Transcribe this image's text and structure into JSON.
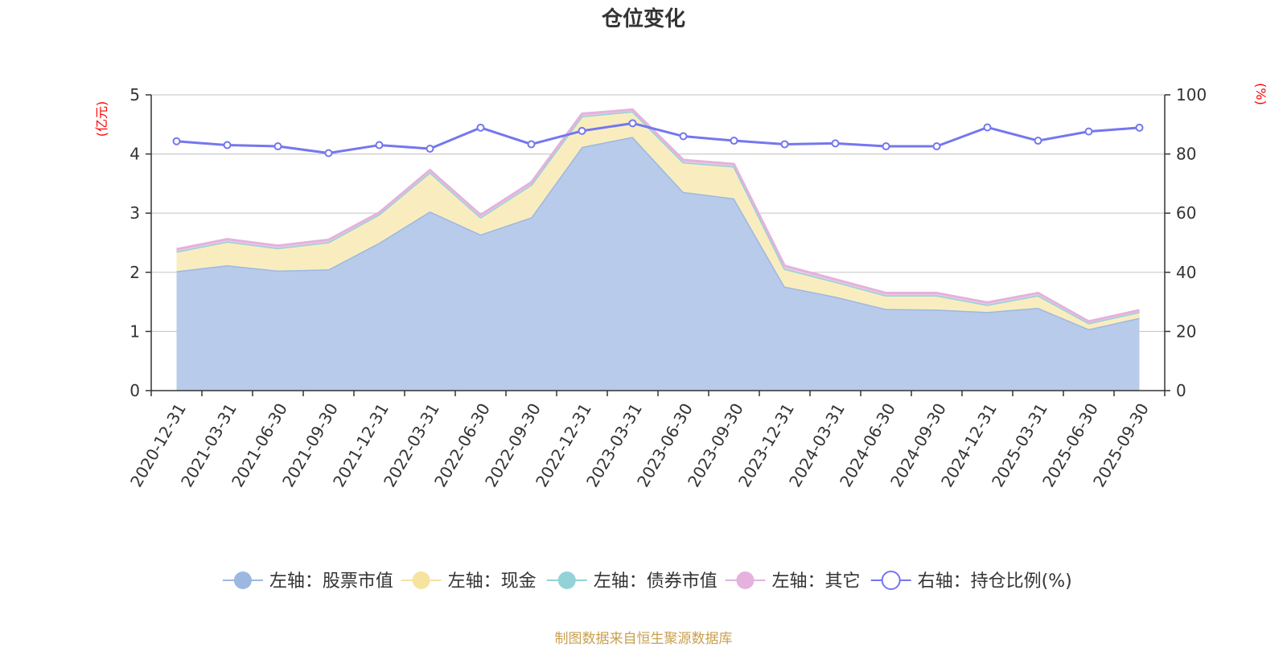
{
  "chart_data": {
    "type": "area",
    "title": "仓位变化",
    "left_axis_unit": "(亿元)",
    "right_axis_unit": "(%)",
    "left_ylim": [
      0,
      5
    ],
    "left_ticks": [
      0,
      1,
      2,
      3,
      4,
      5
    ],
    "right_ylim": [
      0,
      100
    ],
    "right_ticks": [
      0,
      20,
      40,
      60,
      80,
      100
    ],
    "categories": [
      "2020-12-31",
      "2021-03-31",
      "2021-06-30",
      "2021-09-30",
      "2021-12-31",
      "2022-03-31",
      "2022-06-30",
      "2022-09-30",
      "2022-12-31",
      "2023-03-31",
      "2023-06-30",
      "2023-09-30",
      "2023-12-31",
      "2024-03-31",
      "2024-06-30",
      "2024-09-30",
      "2024-12-31",
      "2025-03-31",
      "2025-06-30",
      "2025-09-30"
    ],
    "series": [
      {
        "name": "左轴：股票市值",
        "axis": "left",
        "kind": "stacked-area",
        "color": "#9db8e0",
        "fill": "#b8cbea",
        "values": [
          2.02,
          2.12,
          2.03,
          2.05,
          2.5,
          3.03,
          2.64,
          2.93,
          4.12,
          4.29,
          3.36,
          3.25,
          1.76,
          1.59,
          1.38,
          1.37,
          1.33,
          1.4,
          1.04,
          1.23
        ]
      },
      {
        "name": "左轴：现金",
        "axis": "left",
        "kind": "stacked-area",
        "color": "#f6e3a0",
        "fill": "#f9edc0",
        "values": [
          0.33,
          0.4,
          0.38,
          0.46,
          0.48,
          0.66,
          0.29,
          0.55,
          0.52,
          0.43,
          0.5,
          0.54,
          0.3,
          0.25,
          0.23,
          0.24,
          0.12,
          0.21,
          0.1,
          0.1
        ]
      },
      {
        "name": "左轴：债券市值",
        "axis": "left",
        "kind": "stacked-area",
        "color": "#93d3d8",
        "fill": "#b2e0e3",
        "values": [
          0,
          0,
          0,
          0,
          0,
          0,
          0,
          0,
          0,
          0,
          0,
          0,
          0,
          0,
          0,
          0,
          0,
          0,
          0,
          0
        ]
      },
      {
        "name": "左轴：其它",
        "axis": "left",
        "kind": "stacked-area",
        "color": "#e4b2dc",
        "fill": "#edc8e6",
        "values": [
          0.04,
          0.04,
          0.04,
          0.04,
          0.03,
          0.04,
          0.04,
          0.04,
          0.04,
          0.03,
          0.04,
          0.04,
          0.05,
          0.04,
          0.04,
          0.04,
          0.04,
          0.04,
          0.03,
          0.03
        ]
      },
      {
        "name": "右轴：持仓比例(%)",
        "axis": "right",
        "kind": "line",
        "color": "#7477ee",
        "values": [
          84.3,
          83.0,
          82.6,
          80.3,
          83.0,
          81.8,
          88.9,
          83.3,
          87.8,
          90.4,
          86.0,
          84.5,
          83.3,
          83.6,
          82.6,
          82.6,
          89.0,
          84.5,
          87.6,
          88.9
        ]
      }
    ],
    "legend_position": "bottom-center",
    "grid": true
  },
  "footer": {
    "source": "制图数据来自恒生聚源数据库"
  }
}
